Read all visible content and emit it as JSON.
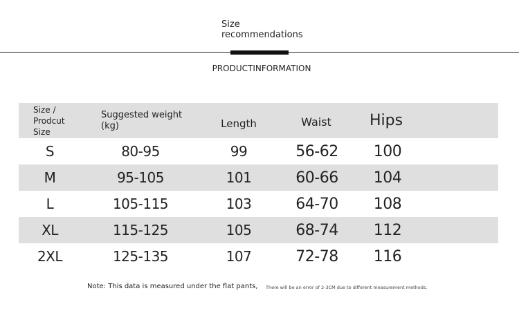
{
  "header": {
    "title": "Size recommendations",
    "subtitle": "PRODUCTINFORMATION"
  },
  "table": {
    "columns": [
      "Size / Prodcut Size",
      "Suggested weight (kg)",
      "Length",
      "Waist",
      "Hips"
    ],
    "rows": [
      [
        "S",
        "80-95",
        "99",
        "56-62",
        "100"
      ],
      [
        "M",
        "95-105",
        "101",
        "60-66",
        "104"
      ],
      [
        "L",
        "105-115",
        "103",
        "64-70",
        "108"
      ],
      [
        "XL",
        "115-125",
        "105",
        "68-74",
        "112"
      ],
      [
        "2XL",
        "125-135",
        "107",
        "72-78",
        "116"
      ]
    ]
  },
  "notes": [
    "Note: This data is measured under the flat pants,",
    "There will be an error of 2-3CM due to different measurement methods."
  ]
}
